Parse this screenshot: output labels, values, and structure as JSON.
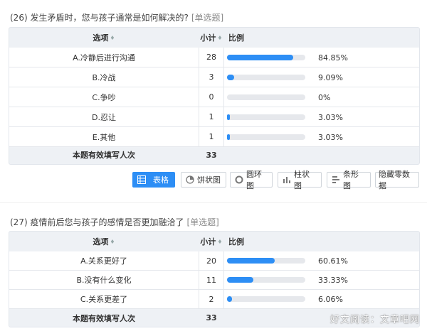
{
  "q26": {
    "title": "(26) 发生矛盾时，您与孩子通常是如何解决的?",
    "tag": "[单选题]",
    "header": {
      "option": "选项",
      "count": "小计",
      "ratio": "比例",
      "sort": "♦"
    },
    "rows": [
      {
        "label": "A.冷静后进行沟通",
        "count": "28",
        "pct": "84.85%",
        "frac": 0.8485
      },
      {
        "label": "B.冷战",
        "count": "3",
        "pct": "9.09%",
        "frac": 0.0909
      },
      {
        "label": "C.争吵",
        "count": "0",
        "pct": "0%",
        "frac": 0
      },
      {
        "label": "D.忍让",
        "count": "1",
        "pct": "3.03%",
        "frac": 0.0303
      },
      {
        "label": "E.其他",
        "count": "1",
        "pct": "3.03%",
        "frac": 0.0303
      }
    ],
    "footer": {
      "label": "本题有效填写人次",
      "count": "33"
    }
  },
  "toolbar": {
    "table": "表格",
    "pie": "饼状图",
    "ring": "圆环图",
    "column": "柱状图",
    "bar": "条形图",
    "hide_zero": "隐藏零数据"
  },
  "q27": {
    "title": "(27) 疫情前后您与孩子的感情是否更加融洽了",
    "tag": "[单选题]",
    "header": {
      "option": "选项",
      "count": "小计",
      "ratio": "比例",
      "sort": "♦"
    },
    "rows": [
      {
        "label": "A.关系更好了",
        "count": "20",
        "pct": "60.61%",
        "frac": 0.6061
      },
      {
        "label": "B.没有什么变化",
        "count": "11",
        "pct": "33.33%",
        "frac": 0.3333
      },
      {
        "label": "C.关系更差了",
        "count": "2",
        "pct": "6.06%",
        "frac": 0.0606
      }
    ],
    "footer": {
      "label": "本题有效填写人次",
      "count": "33"
    }
  },
  "colors": {
    "accent": "#2d8ef5",
    "track": "#e6e8ec",
    "table_bg": "#eef1f5"
  },
  "watermark": "好文阅读：文章吧网"
}
